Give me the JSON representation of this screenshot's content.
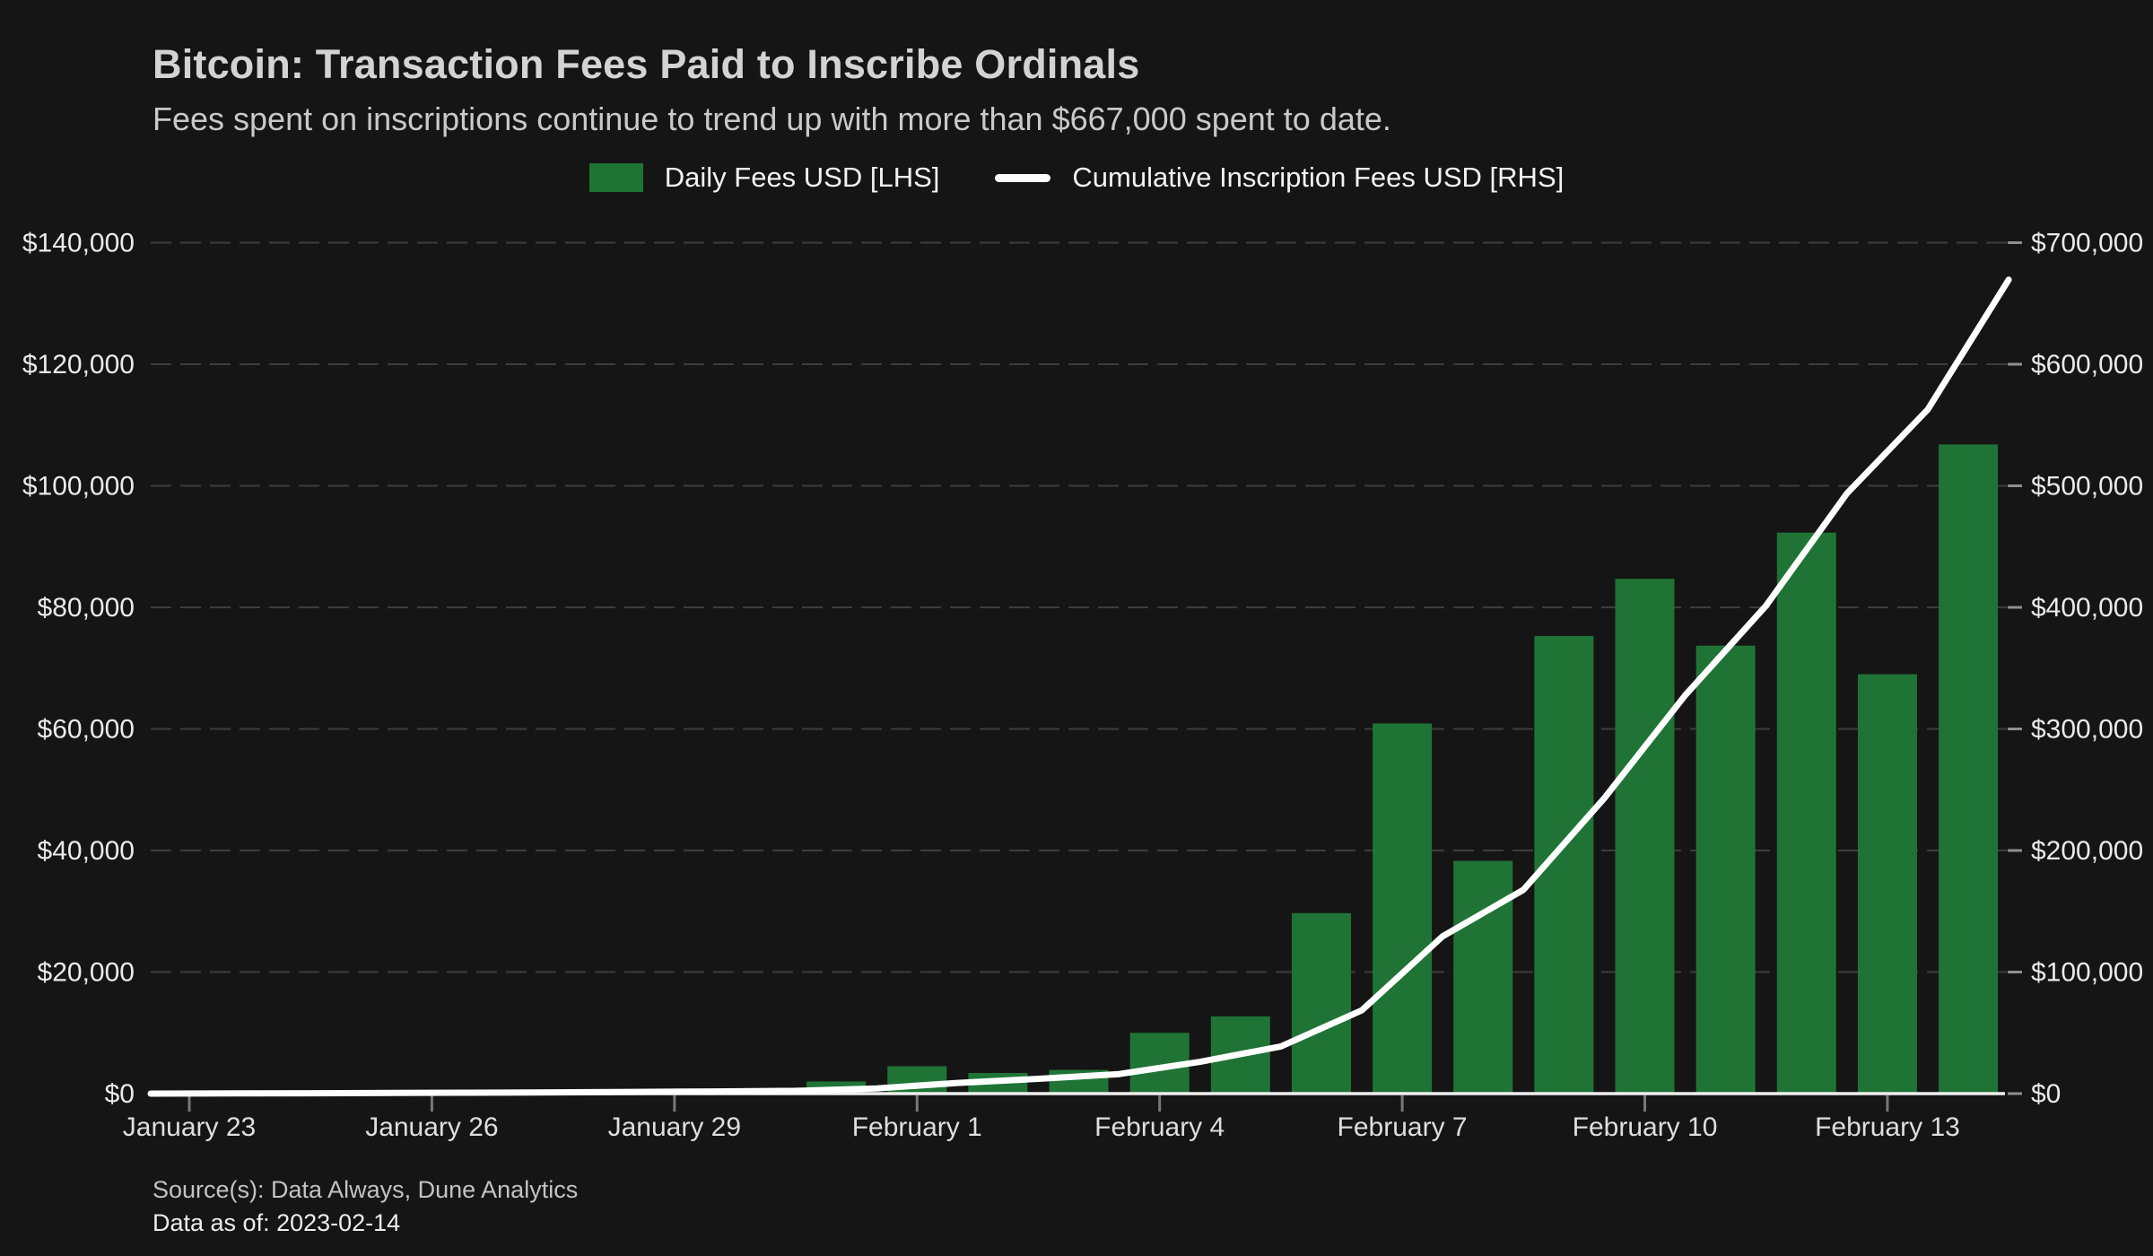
{
  "header": {
    "title": "Bitcoin: Transaction Fees Paid to Inscribe Ordinals",
    "subtitle": "Fees spent on inscriptions continue to trend up with more than $667,000 spent to date."
  },
  "legend": {
    "items": [
      {
        "label": "Daily Fees USD [LHS]",
        "marker": "green-square"
      },
      {
        "label": "Cumulative Inscription Fees USD [RHS]",
        "marker": "white-line"
      }
    ]
  },
  "footer": {
    "source": "Source(s): Data Always, Dune Analytics",
    "as_of": "Data as of: 2023-02-14"
  },
  "colors": {
    "background": "#151515",
    "bar_green": "#1f7435",
    "line_white": "#ffffff",
    "gridline": "#3d3d3d",
    "axis_line": "#efefef",
    "right_tick": "#8f8f8f",
    "x_tick": "#787878",
    "y_label": "#eaeaea",
    "x_label": "#dedede"
  },
  "chart_data": {
    "type": "bar",
    "title": "Bitcoin: Transaction Fees Paid to Inscribe Ordinals",
    "subtitle": "Fees spent on inscriptions continue to trend up with more than $667,000 spent to date.",
    "grid": "horizontal-dashed",
    "legend_position": "top-center",
    "dates": [
      "January 23",
      "January 24",
      "January 25",
      "January 26",
      "January 27",
      "January 28",
      "January 29",
      "January 30",
      "January 31",
      "February 1",
      "February 2",
      "February 3",
      "February 4",
      "February 5",
      "February 6",
      "February 7",
      "February 8",
      "February 9",
      "February 10",
      "February 11",
      "February 12",
      "February 13",
      "February 14"
    ],
    "x_tick_labels": [
      "January 23",
      "January 26",
      "January 29",
      "February 1",
      "February 4",
      "February 7",
      "February 10",
      "February 13"
    ],
    "x_tick_indices": [
      0,
      3,
      6,
      9,
      12,
      15,
      18,
      21
    ],
    "series": [
      {
        "name": "Daily Fees USD [LHS]",
        "type": "bar",
        "axis": "left",
        "color": "#1f7435",
        "values": [
          150,
          150,
          200,
          250,
          300,
          350,
          400,
          500,
          2000,
          4500,
          3400,
          3900,
          10000,
          12700,
          29700,
          60900,
          38300,
          75300,
          84700,
          73700,
          92300,
          69000,
          106800
        ]
      },
      {
        "name": "Cumulative Inscription Fees USD [RHS]",
        "type": "line",
        "axis": "right",
        "color": "#ffffff",
        "values": [
          150,
          300,
          500,
          750,
          1050,
          1400,
          1800,
          2300,
          4300,
          8800,
          12200,
          16100,
          26100,
          38800,
          68500,
          129400,
          167700,
          243000,
          327700,
          401400,
          493700,
          562700,
          669500
        ]
      }
    ],
    "left_axis": {
      "min": 0,
      "max": 140000,
      "step": 20000,
      "tick_labels": [
        "$0",
        "$20,000",
        "$40,000",
        "$60,000",
        "$80,000",
        "$100,000",
        "$120,000",
        "$140,000"
      ]
    },
    "right_axis": {
      "min": 0,
      "max": 700000,
      "step": 100000,
      "tick_labels": [
        "$0",
        "$100,000",
        "$200,000",
        "$300,000",
        "$400,000",
        "$500,000",
        "$600,000",
        "$700,000"
      ]
    }
  }
}
